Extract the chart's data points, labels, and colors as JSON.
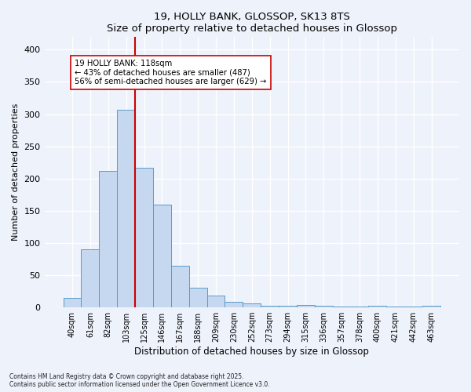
{
  "title1": "19, HOLLY BANK, GLOSSOP, SK13 8TS",
  "title2": "Size of property relative to detached houses in Glossop",
  "xlabel": "Distribution of detached houses by size in Glossop",
  "ylabel": "Number of detached properties",
  "bin_labels": [
    "40sqm",
    "61sqm",
    "82sqm",
    "103sqm",
    "125sqm",
    "146sqm",
    "167sqm",
    "188sqm",
    "209sqm",
    "230sqm",
    "252sqm",
    "273sqm",
    "294sqm",
    "315sqm",
    "336sqm",
    "357sqm",
    "378sqm",
    "400sqm",
    "421sqm",
    "442sqm",
    "463sqm"
  ],
  "bar_heights": [
    15,
    90,
    212,
    307,
    217,
    160,
    65,
    31,
    18,
    9,
    6,
    2,
    2,
    4,
    3,
    1,
    1,
    3,
    1,
    1,
    3
  ],
  "bar_color": "#c5d8f0",
  "bar_edge_color": "#5a9bc9",
  "redline_color": "#cc0000",
  "annotation_text": "19 HOLLY BANK: 118sqm\n← 43% of detached houses are smaller (487)\n56% of semi-detached houses are larger (629) →",
  "annotation_box_color": "#ffffff",
  "annotation_box_edge": "#cc0000",
  "ylim": [
    0,
    420
  ],
  "yticks": [
    0,
    50,
    100,
    150,
    200,
    250,
    300,
    350,
    400
  ],
  "background_color": "#eef2fb",
  "grid_color": "#ffffff",
  "footer": "Contains HM Land Registry data © Crown copyright and database right 2025.\nContains public sector information licensed under the Open Government Licence v3.0."
}
